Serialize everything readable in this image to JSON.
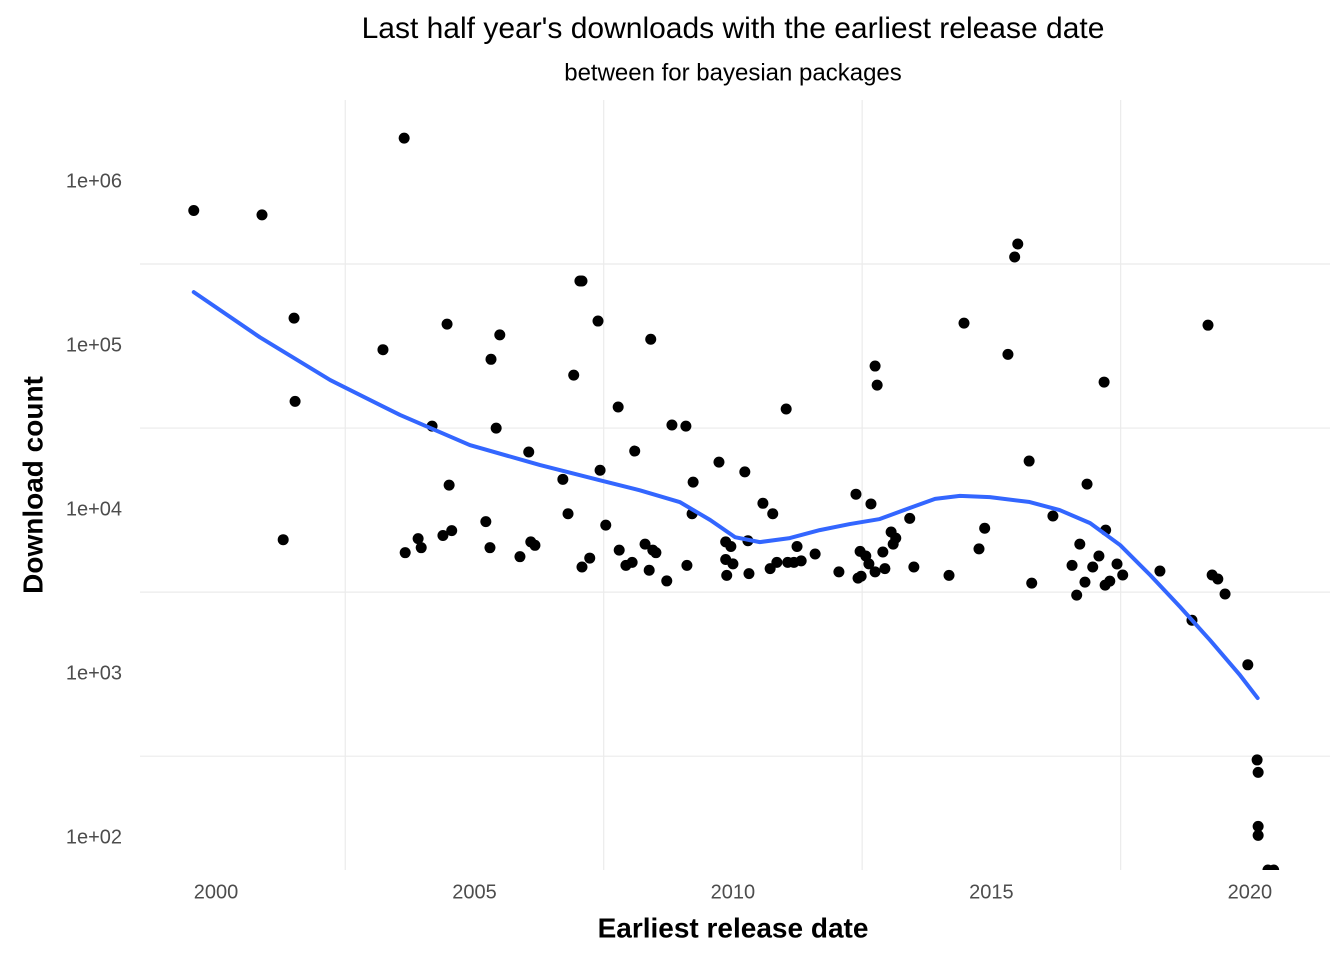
{
  "chart_data": {
    "type": "scatter",
    "title": "Last half year's downloads with the earliest release date",
    "subtitle": "between for bayesian packages",
    "x_label": "Earliest release date",
    "y_label": "Download count",
    "xlim": [
      1998.53,
      2021.55
    ],
    "xticks": [
      2000,
      2005,
      2010,
      2015,
      2020
    ],
    "x_minor_ticks": [
      2002.5,
      2007.5,
      2012.5,
      2017.5
    ],
    "ylim": [
      64,
      3160000
    ],
    "y_log": true,
    "yticks": [
      {
        "value": 100,
        "label": "1e+02"
      },
      {
        "value": 1000,
        "label": "1e+03"
      },
      {
        "value": 10000,
        "label": "1e+04"
      },
      {
        "value": 100000,
        "label": "1e+05"
      },
      {
        "value": 1000000,
        "label": "1e+06"
      }
    ],
    "y_minor_ticks": [
      316.2,
      3162,
      31623,
      316228
    ],
    "grid": true,
    "series": [
      {
        "type": "scatter",
        "color": "#000000",
        "x": [
          1999.57,
          2000.89,
          2003.64,
          2001.51,
          2001.53,
          2001.3,
          2003.23,
          2004.18,
          2004.47,
          2004.51,
          2003.91,
          2003.97,
          2003.66,
          2004.39,
          2004.56,
          2005.32,
          2005.49,
          2005.42,
          2005.22,
          2005.3,
          2005.88,
          2006.05,
          2006.09,
          2006.17,
          2006.92,
          2007.04,
          2007.08,
          2007.39,
          2006.71,
          2006.81,
          2007.43,
          2007.54,
          2007.08,
          2007.23,
          2007.78,
          2007.8,
          2007.93,
          2008.05,
          2008.1,
          2008.3,
          2008.38,
          2008.41,
          2008.45,
          2008.51,
          2008.72,
          2008.82,
          2009.09,
          2009.11,
          2009.23,
          2009.21,
          2009.73,
          2009.86,
          2009.88,
          2009.86,
          2009.96,
          2010.0,
          2010.23,
          2010.29,
          2010.31,
          2010.58,
          2010.72,
          2010.77,
          2010.85,
          2011.03,
          2011.06,
          2011.18,
          2011.24,
          2011.32,
          2011.59,
          2012.05,
          2012.38,
          2012.42,
          2012.46,
          2012.48,
          2012.57,
          2012.63,
          2012.67,
          2012.75,
          2012.79,
          2012.75,
          2012.9,
          2012.94,
          2013.06,
          2013.1,
          2013.15,
          2013.42,
          2013.5,
          2014.18,
          2014.47,
          2014.76,
          2014.87,
          2015.32,
          2015.45,
          2015.51,
          2015.73,
          2015.78,
          2016.19,
          2016.56,
          2016.65,
          2016.71,
          2016.81,
          2016.85,
          2016.96,
          2017.08,
          2017.18,
          2017.2,
          2017.21,
          2017.29,
          2017.43,
          2017.54,
          2018.26,
          2018.88,
          2019.19,
          2019.27,
          2019.38,
          2019.52,
          2019.96,
          2020.14,
          2020.16,
          2020.16,
          2020.16,
          2020.35,
          2020.46
        ],
        "values": [
          670000,
          630000,
          1850000,
          148000,
          46000,
          6600,
          95000,
          32500,
          136000,
          14200,
          6700,
          5900,
          5500,
          7000,
          7500,
          83000,
          117000,
          31600,
          8500,
          5900,
          5200,
          22600,
          6400,
          6100,
          66500,
          249000,
          249000,
          142000,
          15400,
          9500,
          17500,
          8100,
          4500,
          5100,
          42500,
          5700,
          4600,
          4800,
          22900,
          6200,
          4300,
          110000,
          5700,
          5500,
          3700,
          33000,
          32500,
          4600,
          14800,
          9500,
          19600,
          6400,
          4000,
          5000,
          6000,
          4700,
          17100,
          6500,
          4100,
          11000,
          4400,
          9500,
          4800,
          41300,
          4800,
          4800,
          6000,
          4900,
          5400,
          4200,
          12500,
          3850,
          5600,
          3950,
          5250,
          4700,
          10900,
          75500,
          57800,
          4200,
          5550,
          4400,
          7350,
          6200,
          6750,
          8900,
          4500,
          4000,
          138000,
          5800,
          7750,
          89000,
          349000,
          419000,
          19900,
          3590,
          9200,
          4600,
          3030,
          6200,
          3640,
          14400,
          4500,
          5250,
          60300,
          3490,
          7550,
          3690,
          4690,
          4020,
          4250,
          2130,
          134000,
          4020,
          3800,
          3080,
          1140,
          300,
          252,
          118,
          104,
          64,
          64
        ]
      },
      {
        "type": "line",
        "color": "#3366ff",
        "x": [
          1999.57,
          2000.85,
          2002.21,
          2003.56,
          2004.91,
          2006.27,
          2007.43,
          2008.2,
          2008.97,
          2009.56,
          2010.04,
          2010.52,
          2011.1,
          2011.68,
          2012.26,
          2012.84,
          2013.42,
          2013.91,
          2014.39,
          2014.97,
          2015.74,
          2016.32,
          2016.91,
          2017.49,
          2018.07,
          2018.65,
          2019.23,
          2019.81,
          2020.15
        ],
        "values": [
          213000,
          113000,
          62000,
          38000,
          24900,
          18800,
          15200,
          13200,
          11200,
          8700,
          6840,
          6380,
          6750,
          7550,
          8220,
          8820,
          10300,
          11700,
          12200,
          12000,
          11200,
          10000,
          8330,
          6120,
          4020,
          2570,
          1610,
          985,
          715
        ]
      }
    ]
  }
}
